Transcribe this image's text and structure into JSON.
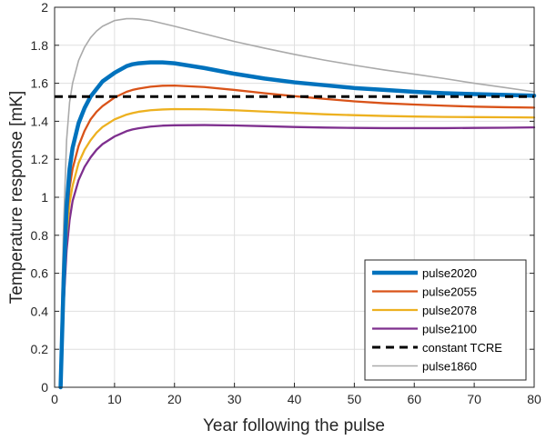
{
  "chart_data": {
    "type": "line",
    "title": "",
    "xlabel": "Year following the pulse",
    "ylabel": "Temperature response [mK]",
    "xlim": [
      0,
      80
    ],
    "ylim": [
      0,
      2
    ],
    "x_ticks": [
      0,
      10,
      20,
      30,
      40,
      50,
      60,
      70,
      80
    ],
    "y_ticks": [
      "0",
      "0.2",
      "0.4",
      "0.6",
      "0.8",
      "1",
      "1.2",
      "1.4",
      "1.6",
      "1.8",
      "2"
    ],
    "grid": true,
    "legend_position": "bottom-right",
    "x": [
      1,
      1.5,
      2,
      2.5,
      3,
      4,
      5,
      6,
      7,
      8,
      10,
      12,
      13,
      14,
      16,
      18,
      20,
      25,
      30,
      35,
      40,
      45,
      50,
      55,
      60,
      65,
      70,
      75,
      80
    ],
    "series": [
      {
        "name": "pulse2020",
        "color": "#0072BD",
        "style": "solid",
        "width": "thick",
        "values": [
          0.0,
          0.55,
          0.95,
          1.15,
          1.26,
          1.39,
          1.47,
          1.53,
          1.57,
          1.61,
          1.655,
          1.69,
          1.7,
          1.705,
          1.71,
          1.71,
          1.705,
          1.68,
          1.65,
          1.625,
          1.605,
          1.59,
          1.575,
          1.565,
          1.555,
          1.548,
          1.543,
          1.539,
          1.535
        ]
      },
      {
        "name": "pulse2055",
        "color": "#D95319",
        "style": "solid",
        "width": "normal",
        "values": [
          0.0,
          0.5,
          0.87,
          1.05,
          1.15,
          1.27,
          1.35,
          1.41,
          1.45,
          1.48,
          1.525,
          1.555,
          1.565,
          1.572,
          1.582,
          1.587,
          1.588,
          1.58,
          1.565,
          1.548,
          1.532,
          1.518,
          1.505,
          1.495,
          1.488,
          1.482,
          1.477,
          1.474,
          1.472
        ]
      },
      {
        "name": "pulse2078",
        "color": "#EDB120",
        "style": "solid",
        "width": "normal",
        "values": [
          0.0,
          0.47,
          0.8,
          0.97,
          1.06,
          1.18,
          1.25,
          1.3,
          1.34,
          1.37,
          1.41,
          1.435,
          1.443,
          1.45,
          1.458,
          1.462,
          1.464,
          1.463,
          1.458,
          1.451,
          1.444,
          1.437,
          1.432,
          1.428,
          1.425,
          1.423,
          1.422,
          1.421,
          1.42
        ]
      },
      {
        "name": "pulse2100",
        "color": "#7E2F8E",
        "style": "solid",
        "width": "normal",
        "values": [
          0.0,
          0.43,
          0.72,
          0.88,
          0.98,
          1.09,
          1.16,
          1.21,
          1.25,
          1.28,
          1.32,
          1.348,
          1.357,
          1.363,
          1.372,
          1.377,
          1.379,
          1.38,
          1.378,
          1.374,
          1.37,
          1.367,
          1.365,
          1.364,
          1.364,
          1.364,
          1.365,
          1.366,
          1.368
        ]
      },
      {
        "name": "constant TCRE",
        "color": "#000000",
        "style": "dashed",
        "width": "normal",
        "values": [
          1.53,
          1.53,
          1.53,
          1.53,
          1.53,
          1.53,
          1.53,
          1.53,
          1.53,
          1.53,
          1.53,
          1.53,
          1.53,
          1.53,
          1.53,
          1.53,
          1.53,
          1.53,
          1.53,
          1.53,
          1.53,
          1.53,
          1.53,
          1.53,
          1.53,
          1.53,
          1.53,
          1.53,
          1.53
        ]
      },
      {
        "name": "pulse1860",
        "color": "#AAAAAA",
        "style": "solid",
        "width": "thin",
        "values": [
          0.2,
          0.85,
          1.3,
          1.5,
          1.6,
          1.72,
          1.79,
          1.84,
          1.875,
          1.9,
          1.93,
          1.94,
          1.94,
          1.938,
          1.93,
          1.915,
          1.9,
          1.86,
          1.82,
          1.785,
          1.752,
          1.722,
          1.695,
          1.67,
          1.648,
          1.625,
          1.6,
          1.578,
          1.555
        ]
      }
    ]
  }
}
